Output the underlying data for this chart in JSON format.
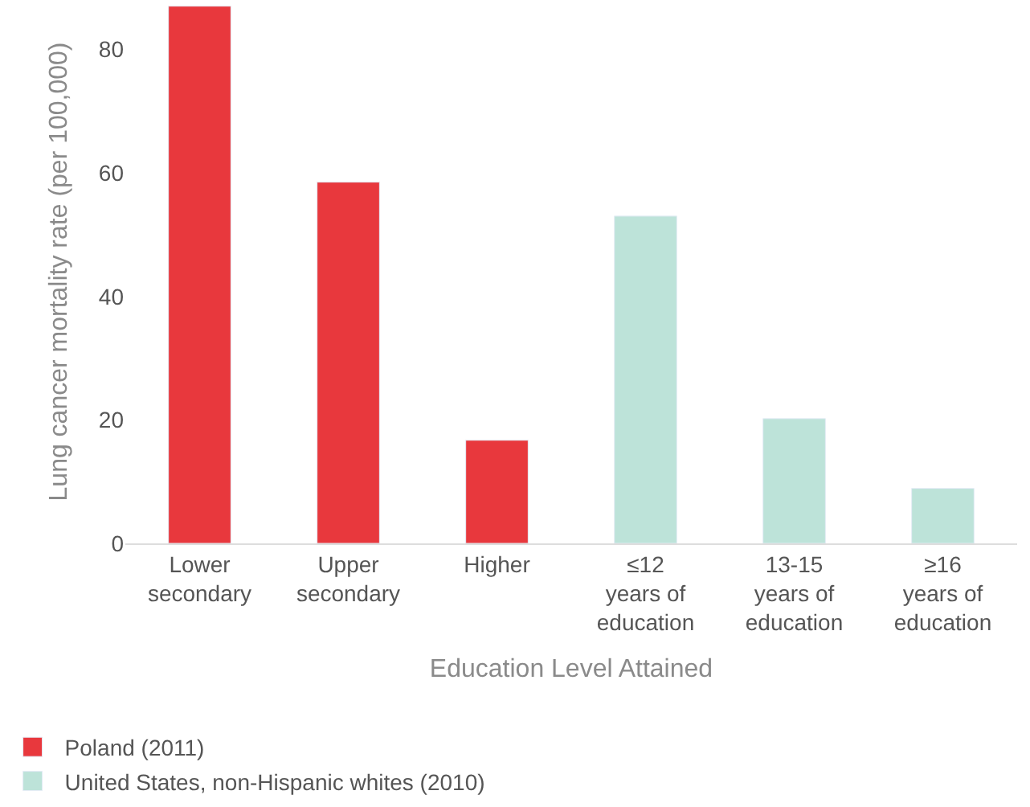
{
  "chart_data": {
    "type": "bar",
    "xlabel": "Education Level Attained",
    "ylabel": "Lung cancer mortality rate (per 100,000)",
    "categories": [
      "Lower\nsecondary",
      "Upper\nsecondary",
      "Higher",
      "≤12\nyears of\neducation",
      "13-15\nyears of\neducation",
      "≥16\nyears of\neducation"
    ],
    "series": [
      {
        "name": "Poland (2011)",
        "color": "#e8383d",
        "values": [
          87,
          58.5,
          16.7,
          null,
          null,
          null
        ]
      },
      {
        "name": "United States, non-Hispanic whites (2010)",
        "color": "#bde3d9",
        "values": [
          null,
          null,
          null,
          53,
          20.2,
          8.9
        ]
      }
    ],
    "ylim": [
      0,
      88
    ],
    "yticks": [
      0,
      20,
      40,
      60,
      80
    ],
    "legend": "bottom left"
  }
}
